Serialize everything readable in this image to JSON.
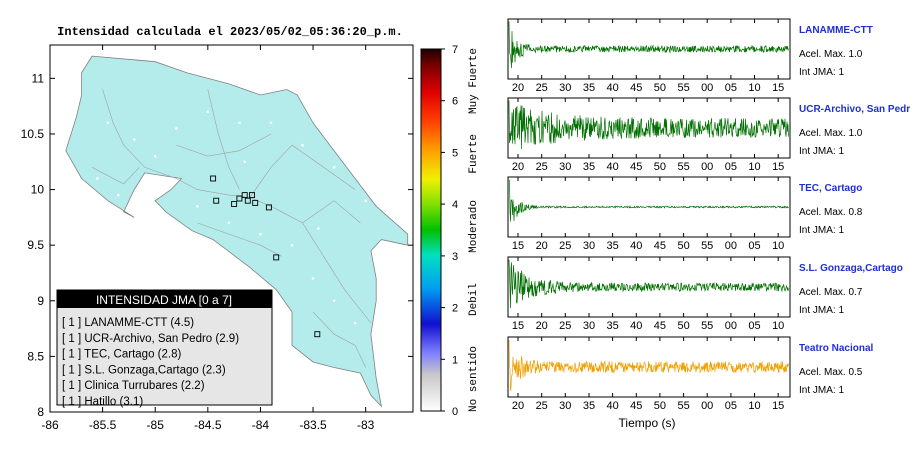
{
  "map": {
    "title": "Intensidad calculada el 2023/05/02_05:36:20_p.m.",
    "lat_ticks": [
      "11",
      "10.5",
      "10",
      "9.5",
      "9",
      "8.5",
      "8"
    ],
    "lon_ticks": [
      "-86",
      "-85.5",
      "-85",
      "-84.5",
      "-84",
      "-83.5",
      "-83"
    ],
    "land_color": "#b4ecec",
    "sea_color": "#ffffff",
    "station_markers": [
      {
        "lon": -84.45,
        "lat": 10.1
      },
      {
        "lon": -84.42,
        "lat": 9.9
      },
      {
        "lon": -84.25,
        "lat": 9.87
      },
      {
        "lon": -84.2,
        "lat": 9.92
      },
      {
        "lon": -84.15,
        "lat": 9.95
      },
      {
        "lon": -84.08,
        "lat": 9.95
      },
      {
        "lon": -84.12,
        "lat": 9.9
      },
      {
        "lon": -84.05,
        "lat": 9.88
      },
      {
        "lon": -83.92,
        "lat": 9.84
      },
      {
        "lon": -83.85,
        "lat": 9.39
      },
      {
        "lon": -83.46,
        "lat": 8.7
      }
    ]
  },
  "legend": {
    "title": "INTENSIDAD JMA [0 a 7]",
    "items": [
      "[ 1 ]  LANAMME-CTT (4.5)",
      "[ 1 ]  UCR-Archivo, San Pedro (2.9)",
      "[ 1 ]  TEC, Cartago (2.8)",
      "[ 1 ]  S.L. Gonzaga,Cartago (2.3)",
      "[ 1 ]  Clinica Turrubares (2.2)",
      "[ 1 ]  Hatillo (3.1)"
    ]
  },
  "colorbar": {
    "ticks": [
      "7",
      "6",
      "5",
      "4",
      "3",
      "2",
      "1",
      "0"
    ],
    "labels": [
      "Muy Fuerte",
      "Fuerte",
      "Moderado",
      "Debil",
      "No sentido"
    ]
  },
  "traces": [
    {
      "station": "LANAMME-CTT",
      "acel": "Acel. Max. 1.0",
      "jma": "Int JMA: 1",
      "color": "#007000",
      "ticks": [
        "20",
        "25",
        "30",
        "35",
        "40",
        "45",
        "50",
        "55",
        "00",
        "05",
        "10",
        "15"
      ],
      "start": 17,
      "decay": 0.08,
      "base": 0.12
    },
    {
      "station": "UCR-Archivo, San Pedro",
      "acel": "Acel. Max. 1.0",
      "jma": "Int JMA: 1",
      "color": "#007000",
      "ticks": [
        "20",
        "25",
        "30",
        "35",
        "40",
        "45",
        "50",
        "55",
        "00",
        "05",
        "10",
        "15"
      ],
      "start": 17,
      "decay": 0.015,
      "base": 0.35
    },
    {
      "station": "TEC, Cartago",
      "acel": "Acel. Max. 0.8",
      "jma": "Int JMA: 1",
      "color": "#007000",
      "ticks": [
        "15",
        "20",
        "25",
        "30",
        "35",
        "40",
        "45",
        "50",
        "55",
        "00",
        "05",
        "10"
      ],
      "start": 14,
      "decay": 0.08,
      "base": 0.03
    },
    {
      "station": "S.L. Gonzaga,Cartago",
      "acel": "Acel. Max. 0.7",
      "jma": "Int JMA: 1",
      "color": "#007000",
      "ticks": [
        "15",
        "20",
        "25",
        "30",
        "35",
        "40",
        "45",
        "50",
        "55",
        "00",
        "05",
        "10"
      ],
      "start": 14,
      "decay": 0.03,
      "base": 0.15
    },
    {
      "station": "Teatro Nacional",
      "acel": "Acel. Max. 0.5",
      "jma": "Int JMA: 1",
      "color": "#f0a000",
      "ticks": [
        "20",
        "25",
        "30",
        "35",
        "40",
        "45",
        "50",
        "55",
        "00",
        "05",
        "10",
        "15"
      ],
      "start": 16,
      "decay": 0.06,
      "base": 0.2
    }
  ],
  "xaxis_label": "Tiempo (s)"
}
